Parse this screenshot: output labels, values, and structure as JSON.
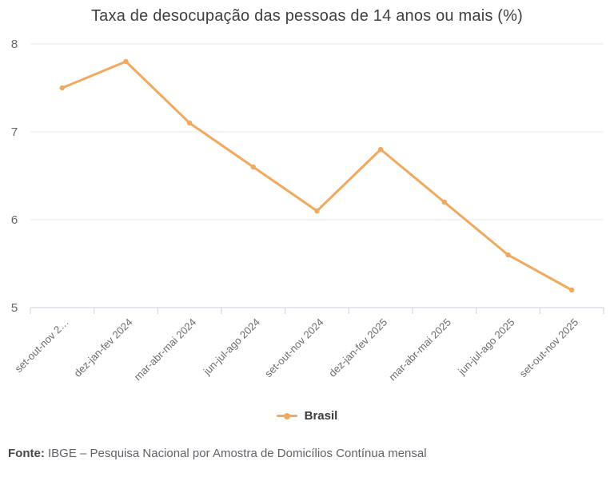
{
  "title": "Taxa de desocupação das pessoas de 14 anos ou mais (%)",
  "legend": {
    "label": "Brasil"
  },
  "footer": {
    "prefix": "Fonte:",
    "text": " IBGE – Pesquisa Nacional por Amostra de Domicílios Contínua mensal"
  },
  "colors": {
    "line": "#f0a95f",
    "grid": "#e8e8e8",
    "axis": "#c9d2de",
    "axis_label": "#666666",
    "x_label": "#6b6b6b"
  },
  "chart_data": {
    "type": "line",
    "title": "Taxa de desocupação das pessoas de 14 anos ou mais (%)",
    "categories": [
      "set-out-nov 2…",
      "dez-jan-fev 2024",
      "mar-abr-mai 2024",
      "jun-jul-ago 2024",
      "set-out-nov 2024",
      "dez-jan-fev 2025",
      "mar-abr-mai 2025",
      "jun-jul-ago 2025",
      "set-out-nov 2025"
    ],
    "series": [
      {
        "name": "Brasil",
        "values": [
          7.5,
          7.8,
          7.1,
          6.6,
          6.1,
          6.8,
          6.2,
          5.6,
          5.2
        ],
        "color": "#f0a95f"
      }
    ],
    "xlabel": "",
    "ylabel": "",
    "ylim": [
      5,
      8
    ],
    "yticks": [
      8,
      7,
      6,
      5
    ],
    "grid": true,
    "legend_position": "bottom",
    "x_label_rotation": -45
  }
}
